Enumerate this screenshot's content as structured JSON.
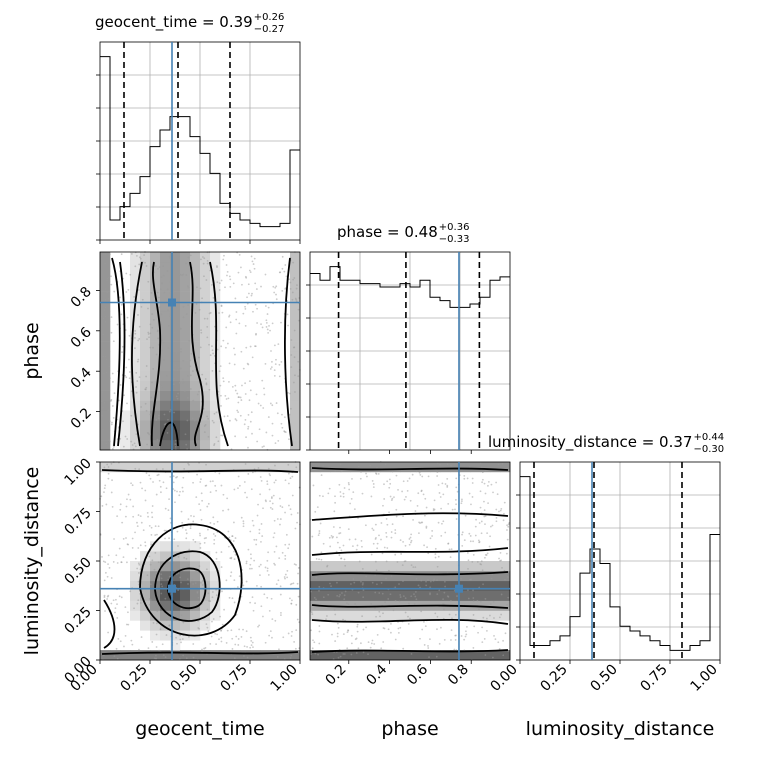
{
  "colors": {
    "truth": "#4682b4",
    "ink": "#000000",
    "grid": "#b0b0b0"
  },
  "chart_data": {
    "type": "corner",
    "parameters": [
      "geocent_time",
      "phase",
      "luminosity_distance"
    ],
    "truths": {
      "geocent_time": 0.36,
      "phase": 0.74,
      "luminosity_distance": 0.36
    },
    "ranges": {
      "geocent_time": [
        0,
        1
      ],
      "phase": [
        0.01,
        0.99
      ],
      "luminosity_distance": [
        0,
        1
      ]
    },
    "titles": [
      {
        "param": "geocent_time",
        "label": "geocent_time = 0.39",
        "plus": "+0.26",
        "minus": "−0.27",
        "quantiles": [
          0.12,
          0.39,
          0.65
        ]
      },
      {
        "param": "phase",
        "label": "phase = 0.48",
        "plus": "+0.36",
        "minus": "−0.33",
        "quantiles": [
          0.15,
          0.48,
          0.84
        ]
      },
      {
        "param": "luminosity_distance",
        "label": "luminosity_distance = 0.37",
        "plus": "+0.44",
        "minus": "−0.30",
        "quantiles": [
          0.07,
          0.37,
          0.81
        ]
      }
    ],
    "histograms": [
      {
        "param": "geocent_time",
        "bins": 20,
        "values": [
          55,
          6,
          10,
          14,
          19,
          28,
          33,
          37,
          37,
          31,
          26,
          20,
          11,
          8,
          6,
          5,
          4,
          4,
          5,
          27
        ]
      },
      {
        "param": "phase",
        "bins": 20,
        "values": [
          52,
          50,
          54,
          50,
          50,
          49,
          49,
          48,
          48,
          49,
          48,
          50,
          45,
          44,
          42,
          42,
          43,
          45,
          50,
          51
        ]
      },
      {
        "param": "luminosity_distance",
        "bins": 20,
        "values": [
          38,
          3,
          3,
          4,
          5,
          9,
          18,
          23,
          20,
          11,
          7,
          6,
          5,
          4,
          3,
          2,
          2,
          3,
          4,
          26
        ]
      }
    ],
    "tick_labels": {
      "x": {
        "geocent_time": [
          "0.00",
          "0.25",
          "0.50",
          "0.75",
          "1.00"
        ],
        "phase": [
          "0.2",
          "0.4",
          "0.6",
          "0.8"
        ],
        "luminosity_distance": [
          "0.00",
          "0.25",
          "0.50",
          "0.75",
          "1.00"
        ]
      },
      "y": {
        "phase": [
          "0.2",
          "0.4",
          "0.6",
          "0.8"
        ],
        "luminosity_distance": [
          "0.00",
          "0.25",
          "0.50",
          "0.75",
          "1.00"
        ]
      }
    },
    "axis_labels": {
      "x": [
        "geocent_time",
        "phase",
        "luminosity_distance"
      ],
      "y": [
        "phase",
        "luminosity_distance"
      ]
    },
    "grid": true
  }
}
